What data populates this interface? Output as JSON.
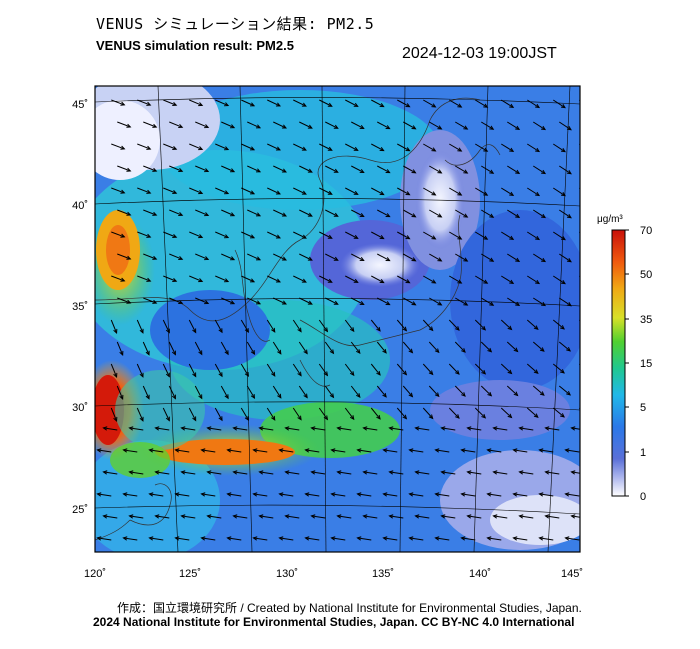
{
  "header": {
    "title_jp": "VENUS シミュレーション結果: PM2.5",
    "title_en": "VENUS simulation result: PM2.5",
    "timestamp": "2024-12-03 19:00JST"
  },
  "map": {
    "lon_ticks": [
      "120˚",
      "125˚",
      "130˚",
      "135˚",
      "140˚",
      "145˚"
    ],
    "lat_ticks": [
      "45˚",
      "40˚",
      "35˚",
      "30˚",
      "25˚"
    ]
  },
  "colorbar": {
    "unit": "μg/m³",
    "tick_labels": [
      "70",
      "50",
      "35",
      "15",
      "5",
      "1",
      "0"
    ],
    "colors": [
      "#d61a0a",
      "#f08a14",
      "#e8e02a",
      "#3ccc2c",
      "#1ec8e0",
      "#2a6ee8",
      "#ffffff"
    ]
  },
  "footer": {
    "credit_line1": "作成：国立環境研究所 / Created by National Institute for Environmental Studies, Japan.",
    "credit_line2": "2024 National Institute for Environmental Studies, Japan. CC BY-NC 4.0 International"
  }
}
